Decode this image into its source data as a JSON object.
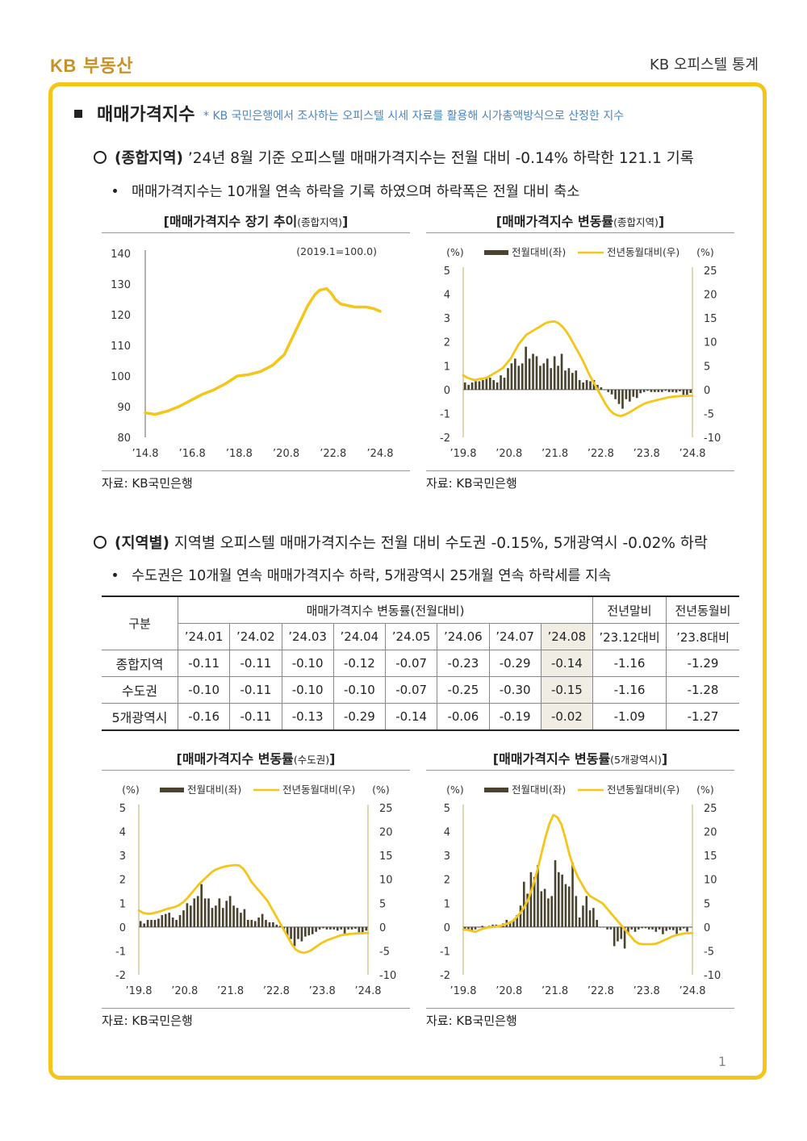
{
  "header": {
    "brand_kb": "KB",
    "brand_name": "부동산",
    "doc_title": "KB 오피스텔 통계"
  },
  "section": {
    "title": "매매가격지수",
    "note": "* KB 국민은행에서 조사하는 오피스텔 시세 자료를 활용해 시가총액방식으로 산정한 지수"
  },
  "para1": {
    "label": "(종합지역)",
    "text": " ’24년 8월 기준 오피스텔 매매가격지수는 전월 대비 -0.14% 하락한 121.1 기록",
    "bullet": "매매가격지수는 10개월 연속 하락을 기록 하였으며 하락폭은 전월 대비 축소"
  },
  "para2": {
    "label": "(지역별)",
    "text": " 지역별 오피스텔 매매가격지수는 전월 대비 수도권 -0.15%, 5개광역시 -0.02% 하락",
    "bullet": "수도권은 10개월 연속 매매가격지수 하락, 5개광역시 25개월 연속 하락세를 지속"
  },
  "colors": {
    "bar": "#4a4330",
    "line": "#f5c518",
    "frame": "#f5c518",
    "brand": "#c8922a",
    "highlight": "#f0eee4"
  },
  "legend": {
    "bar": "전월대비(좌)",
    "line": "전년동월대비(우)"
  },
  "source": "자료: KB국민은행",
  "table": {
    "h_group": "구분",
    "h_main": "매매가격지수 변동률(전월대비)",
    "h_ytd": "전년말비",
    "h_yoy": "전년동월비",
    "months": [
      "’24.01",
      "’24.02",
      "’24.03",
      "’24.04",
      "’24.05",
      "’24.06",
      "’24.07",
      "’24.08"
    ],
    "ytd_sub": "’23.12대비",
    "yoy_sub": "’23.8대비",
    "rows": [
      {
        "name": "종합지역",
        "vals": [
          "-0.11",
          "-0.11",
          "-0.10",
          "-0.12",
          "-0.07",
          "-0.23",
          "-0.29",
          "-0.14"
        ],
        "ytd": "-1.16",
        "yoy": "-1.29"
      },
      {
        "name": "수도권",
        "vals": [
          "-0.10",
          "-0.11",
          "-0.10",
          "-0.10",
          "-0.07",
          "-0.25",
          "-0.30",
          "-0.15"
        ],
        "ytd": "-1.16",
        "yoy": "-1.28"
      },
      {
        "name": "5개광역시",
        "vals": [
          "-0.16",
          "-0.11",
          "-0.13",
          "-0.29",
          "-0.14",
          "-0.06",
          "-0.19",
          "-0.02"
        ],
        "ytd": "-1.09",
        "yoy": "-1.27"
      }
    ]
  },
  "page_number": "1",
  "chart_data": [
    {
      "id": "long",
      "type": "line",
      "title": "[매매가격지수 장기 추이",
      "title_sub": "(종합지역)",
      "title_end": "]",
      "annotation": "(2019.1=100.0)",
      "x_ticks": [
        "’14.8",
        "’16.8",
        "’18.8",
        "’20.8",
        "’22.8",
        "’24.8"
      ],
      "ylim": [
        80,
        140
      ],
      "y_ticks": [
        80,
        90,
        100,
        110,
        120,
        130,
        140
      ],
      "x": [
        2014.58,
        2015.0,
        2015.5,
        2016.0,
        2016.5,
        2017.0,
        2017.5,
        2018.0,
        2018.5,
        2019.0,
        2019.5,
        2020.0,
        2020.5,
        2021.0,
        2021.5,
        2021.8,
        2022.0,
        2022.3,
        2022.5,
        2022.67,
        2022.9,
        2023.2,
        2023.5,
        2024.0,
        2024.3,
        2024.58
      ],
      "values": [
        88,
        87.5,
        88.5,
        90,
        92,
        94,
        95.5,
        97.5,
        100,
        100.5,
        101.5,
        103.5,
        107,
        115,
        123,
        126.5,
        128,
        128.5,
        127,
        125,
        123.5,
        123,
        122.5,
        122.5,
        122,
        121.1
      ]
    },
    {
      "id": "total",
      "type": "bar+line",
      "title": "[매매가격지수 변동률",
      "title_sub": "(종합지역)",
      "title_end": "]",
      "y_unit_left": "(%)",
      "y_unit_right": "(%)",
      "x_ticks": [
        "’19.8",
        "’20.8",
        "’21.8",
        "’22.8",
        "’23.8",
        "’24.8"
      ],
      "ylim_left": [
        -2,
        5
      ],
      "ylim_right": [
        -10,
        25
      ],
      "bars": [
        0.3,
        0.2,
        0.3,
        0.35,
        0.35,
        0.4,
        0.5,
        0.5,
        0.4,
        0.3,
        0.6,
        0.5,
        0.9,
        1.1,
        1.3,
        1.0,
        1.1,
        1.8,
        1.3,
        1.5,
        1.4,
        1.0,
        1.1,
        1.3,
        0.9,
        1.4,
        1.0,
        1.5,
        0.8,
        0.9,
        0.7,
        0.8,
        0.4,
        0.3,
        0.4,
        0.35,
        0.4,
        0.2,
        0.1,
        0.0,
        -0.1,
        -0.2,
        -0.4,
        -0.6,
        -0.8,
        -0.4,
        -0.5,
        -0.3,
        -0.35,
        -0.15,
        -0.1,
        -0.05,
        -0.1,
        -0.1,
        -0.1,
        -0.1,
        -0.05,
        -0.1,
        -0.1,
        -0.12,
        -0.07,
        -0.23,
        -0.29,
        -0.14
      ],
      "line": [
        3.0,
        2.5,
        2.2,
        2.0,
        2.2,
        2.3,
        2.5,
        3.0,
        3.5,
        4.0,
        4.5,
        5.5,
        6.5,
        8.0,
        9.5,
        10.5,
        11.5,
        12.0,
        12.5,
        13.0,
        13.5,
        14.0,
        14.2,
        14.3,
        14.0,
        13.3,
        12.3,
        11.0,
        9.5,
        8.0,
        6.5,
        4.8,
        3.0,
        1.5,
        0.0,
        -1.5,
        -3.0,
        -4.2,
        -5.0,
        -5.4,
        -5.5,
        -5.2,
        -4.8,
        -4.3,
        -3.8,
        -3.3,
        -2.9,
        -2.6,
        -2.4,
        -2.2,
        -2.0,
        -1.8,
        -1.6,
        -1.5,
        -1.4,
        -1.35,
        -1.3,
        -1.3,
        -1.29
      ]
    },
    {
      "id": "capital",
      "type": "bar+line",
      "title": "[매매가격지수 변동률",
      "title_sub": "(수도권)",
      "title_end": "]",
      "y_unit_left": "(%)",
      "y_unit_right": "(%)",
      "x_ticks": [
        "’19.8",
        "’20.8",
        "’21.8",
        "’22.8",
        "’23.8",
        "’24.8"
      ],
      "ylim_left": [
        -2,
        5
      ],
      "ylim_right": [
        -10,
        25
      ],
      "bars": [
        0.25,
        0.15,
        0.3,
        0.3,
        0.3,
        0.35,
        0.5,
        0.55,
        0.6,
        0.4,
        0.3,
        0.5,
        0.7,
        1.0,
        0.9,
        1.2,
        1.3,
        1.8,
        1.2,
        1.2,
        0.8,
        0.9,
        1.2,
        0.8,
        1.1,
        1.3,
        0.9,
        0.8,
        0.6,
        0.75,
        0.3,
        0.3,
        0.25,
        0.4,
        0.55,
        0.3,
        0.2,
        0.2,
        0.1,
        0.05,
        -0.1,
        -0.4,
        -0.5,
        -0.8,
        -0.5,
        -0.6,
        -0.4,
        -0.35,
        -0.3,
        -0.2,
        -0.1,
        -0.05,
        -0.1,
        -0.1,
        -0.1,
        -0.15,
        -0.1,
        -0.3,
        -0.1,
        -0.1,
        -0.07,
        -0.25,
        -0.3,
        -0.15
      ],
      "line": [
        3.5,
        3.0,
        2.8,
        2.8,
        3.0,
        3.2,
        3.5,
        3.8,
        4.0,
        4.2,
        4.6,
        5.2,
        6.0,
        7.0,
        8.0,
        9.0,
        9.8,
        10.6,
        11.4,
        12.0,
        12.3,
        12.6,
        12.8,
        12.9,
        13.0,
        12.9,
        12.2,
        11.0,
        9.5,
        8.5,
        7.5,
        6.5,
        5.5,
        4.0,
        2.5,
        1.0,
        -0.5,
        -2.0,
        -3.5,
        -4.7,
        -5.2,
        -5.4,
        -5.2,
        -4.8,
        -4.2,
        -3.6,
        -3.1,
        -2.7,
        -2.4,
        -2.1,
        -1.8,
        -1.6,
        -1.5,
        -1.4,
        -1.35,
        -1.3,
        -1.28,
        -1.28
      ]
    },
    {
      "id": "metro",
      "type": "bar+line",
      "title": "[매매가격지수 변동률",
      "title_sub": "(5개광역시)",
      "title_end": "]",
      "y_unit_left": "(%)",
      "y_unit_right": "(%)",
      "x_ticks": [
        "’19.8",
        "’20.8",
        "’21.8",
        "’22.8",
        "’23.8",
        "’24.8"
      ],
      "ylim_left": [
        -2,
        5
      ],
      "ylim_right": [
        -10,
        25
      ],
      "bars": [
        -0.1,
        -0.15,
        -0.2,
        -0.1,
        0.0,
        0.05,
        -0.05,
        0.05,
        0.1,
        0.1,
        0.05,
        0.15,
        0.3,
        0.2,
        0.3,
        0.5,
        0.9,
        1.9,
        1.4,
        2.3,
        2.1,
        2.6,
        1.5,
        1.6,
        1.2,
        1.3,
        2.8,
        2.3,
        2.2,
        1.8,
        1.7,
        2.7,
        1.3,
        0.4,
        0.9,
        1.3,
        0.7,
        0.8,
        0.3,
        0.0,
        0.0,
        -0.1,
        -0.1,
        -0.8,
        -0.6,
        -0.5,
        -0.9,
        -0.3,
        -0.1,
        -0.2,
        -0.1,
        -0.05,
        -0.05,
        -0.1,
        -0.1,
        -0.2,
        -0.1,
        -0.3,
        -0.16,
        -0.11,
        -0.13,
        -0.29,
        -0.14,
        -0.06,
        -0.19,
        -0.02
      ],
      "line": [
        -0.5,
        -0.6,
        -0.8,
        -1.0,
        -0.6,
        -0.3,
        -0.1,
        0.0,
        0.1,
        0.2,
        0.5,
        0.8,
        1.2,
        2.0,
        3.0,
        4.3,
        6.0,
        8.5,
        11.5,
        15.0,
        18.5,
        21.5,
        23.5,
        23.0,
        21.5,
        18.5,
        15.0,
        12.5,
        10.5,
        9.0,
        7.5,
        6.5,
        6.0,
        5.5,
        5.0,
        4.0,
        3.0,
        2.0,
        1.0,
        0.0,
        -1.0,
        -2.0,
        -3.0,
        -3.5,
        -3.6,
        -3.6,
        -3.6,
        -3.5,
        -3.2,
        -2.8,
        -2.4,
        -2.0,
        -1.7,
        -1.5,
        -1.35,
        -1.3,
        -1.27
      ]
    }
  ]
}
